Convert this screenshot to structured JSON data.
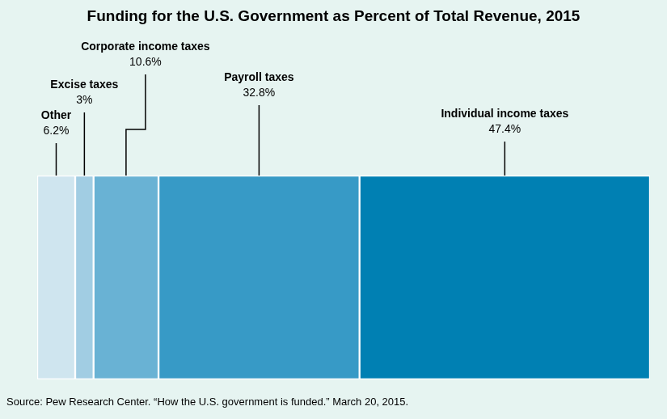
{
  "chart_data": {
    "type": "bar",
    "title": "Funding for the U.S. Government as Percent of Total Revenue, 2015",
    "source": "Source: Pew Research Center. “How the U.S. government is funded.” March 20, 2015.",
    "orientation": "horizontal",
    "stacked": true,
    "data_labels": true,
    "tick_labels": false,
    "grid": false,
    "categories": [
      null
    ],
    "xlim": [
      0,
      100
    ],
    "series": [
      {
        "name": "Other",
        "color": "#cfe5ef",
        "values": [
          6.2
        ],
        "value_labels": [
          "6.2%"
        ]
      },
      {
        "name": "Excise taxes",
        "color": "#a1cde3",
        "values": [
          3
        ],
        "value_labels": [
          "3%"
        ]
      },
      {
        "name": "Corporate income taxes",
        "color": "#69b2d4",
        "values": [
          10.6
        ],
        "value_labels": [
          "10.6%"
        ]
      },
      {
        "name": "Payroll taxes",
        "color": "#379ac6",
        "values": [
          32.8
        ],
        "value_labels": [
          "32.8%"
        ]
      },
      {
        "name": "Individual income taxes",
        "color": "#0080b3",
        "values": [
          47.4
        ],
        "value_labels": [
          "47.4%"
        ]
      }
    ]
  }
}
